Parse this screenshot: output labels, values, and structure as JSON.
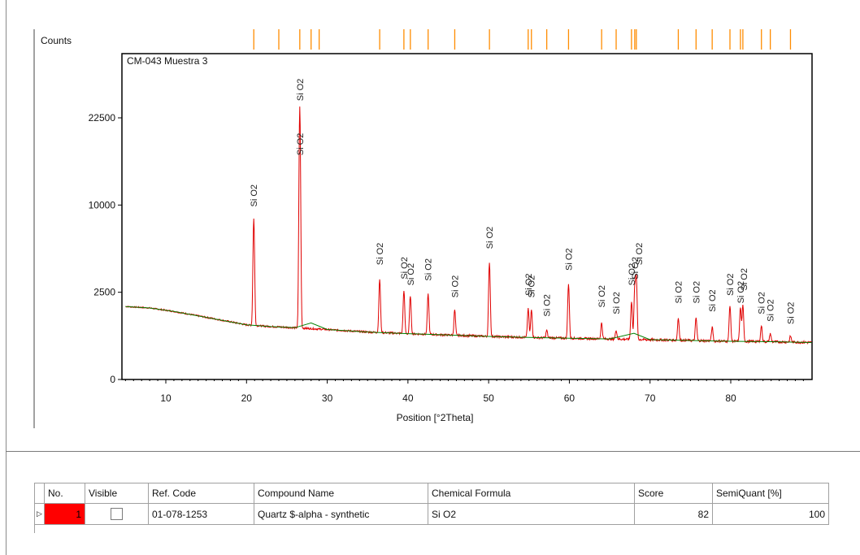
{
  "chart_data": {
    "type": "line",
    "title": "CM-043 Muestra 3",
    "ylabel": "Counts",
    "xlabel": "Position [°2Theta]",
    "xlim": [
      5,
      90
    ],
    "x_ticks": [
      10,
      20,
      30,
      40,
      50,
      60,
      70,
      80
    ],
    "y_ticks": [
      0,
      2500,
      10000,
      22500
    ],
    "y_scale": "sqrt",
    "grid": false,
    "series": [
      {
        "color": "#e00000",
        "background": [
          [
            5,
            1750
          ],
          [
            8,
            1680
          ],
          [
            11,
            1520
          ],
          [
            14,
            1330
          ],
          [
            17,
            1150
          ],
          [
            20,
            980
          ],
          [
            23,
            920
          ],
          [
            26,
            880
          ],
          [
            30,
            820
          ],
          [
            35,
            740
          ],
          [
            40,
            690
          ],
          [
            45,
            650
          ],
          [
            50,
            610
          ],
          [
            55,
            580
          ],
          [
            60,
            560
          ],
          [
            65,
            540
          ],
          [
            70,
            520
          ],
          [
            75,
            500
          ],
          [
            80,
            480
          ],
          [
            85,
            470
          ],
          [
            90,
            450
          ]
        ],
        "peaks": [
          [
            20.9,
            8500
          ],
          [
            26.6,
            24500
          ],
          [
            36.5,
            3300
          ],
          [
            39.5,
            2600
          ],
          [
            40.3,
            2300
          ],
          [
            42.5,
            2400
          ],
          [
            45.8,
            1600
          ],
          [
            50.1,
            4500
          ],
          [
            54.9,
            1650
          ],
          [
            55.3,
            1600
          ],
          [
            57.2,
            800
          ],
          [
            59.9,
            3000
          ],
          [
            64.0,
            1050
          ],
          [
            65.8,
            800
          ],
          [
            67.7,
            2000
          ],
          [
            68.1,
            2700
          ],
          [
            68.3,
            3400
          ],
          [
            73.5,
            1250
          ],
          [
            75.7,
            1250
          ],
          [
            77.7,
            900
          ],
          [
            79.9,
            1800
          ],
          [
            81.2,
            1700
          ],
          [
            81.5,
            1800
          ],
          [
            83.8,
            950
          ],
          [
            84.9,
            700
          ],
          [
            87.4,
            620
          ]
        ]
      },
      {
        "color": "#008000",
        "points": [
          [
            5,
            1750
          ],
          [
            8,
            1680
          ],
          [
            11,
            1520
          ],
          [
            14,
            1330
          ],
          [
            17,
            1150
          ],
          [
            20,
            980
          ],
          [
            23,
            920
          ],
          [
            26,
            880
          ],
          [
            28,
            1050
          ],
          [
            30,
            820
          ],
          [
            35,
            740
          ],
          [
            40,
            690
          ],
          [
            45,
            650
          ],
          [
            50,
            610
          ],
          [
            55,
            580
          ],
          [
            60,
            560
          ],
          [
            65,
            540
          ],
          [
            68,
            700
          ],
          [
            70,
            520
          ],
          [
            75,
            500
          ],
          [
            80,
            480
          ],
          [
            85,
            470
          ],
          [
            90,
            450
          ]
        ]
      }
    ],
    "peak_labels": [
      {
        "x": 20.9,
        "y": 9800,
        "text": "Si O2"
      },
      {
        "x": 26.6,
        "y": 25500,
        "text": "Si O2"
      },
      {
        "x": 26.6,
        "y": 16500,
        "text": "Si O2"
      },
      {
        "x": 36.5,
        "y": 4300,
        "text": "Si O2"
      },
      {
        "x": 39.5,
        "y": 3300,
        "text": "Si O2"
      },
      {
        "x": 40.3,
        "y": 2900,
        "text": "Si O2"
      },
      {
        "x": 42.5,
        "y": 3200,
        "text": "Si O2"
      },
      {
        "x": 45.8,
        "y": 2200,
        "text": "Si O2"
      },
      {
        "x": 50.1,
        "y": 5600,
        "text": "Si O2"
      },
      {
        "x": 54.9,
        "y": 2300,
        "text": "Si O2"
      },
      {
        "x": 55.3,
        "y": 2200,
        "text": "Si O2"
      },
      {
        "x": 57.2,
        "y": 1300,
        "text": "Si O2"
      },
      {
        "x": 59.9,
        "y": 3900,
        "text": "Si O2"
      },
      {
        "x": 64.0,
        "y": 1700,
        "text": "Si O2"
      },
      {
        "x": 65.8,
        "y": 1400,
        "text": "Si O2"
      },
      {
        "x": 67.7,
        "y": 2900,
        "text": "Si O2"
      },
      {
        "x": 68.1,
        "y": 3300,
        "text": "Si O2"
      },
      {
        "x": 68.6,
        "y": 4300,
        "text": "Si O2"
      },
      {
        "x": 73.5,
        "y": 1900,
        "text": "Si O2"
      },
      {
        "x": 75.7,
        "y": 1900,
        "text": "Si O2"
      },
      {
        "x": 77.7,
        "y": 1500,
        "text": "Si O2"
      },
      {
        "x": 79.9,
        "y": 2300,
        "text": "Si O2"
      },
      {
        "x": 81.2,
        "y": 1900,
        "text": "Si O2"
      },
      {
        "x": 81.6,
        "y": 2600,
        "text": "Si O2"
      },
      {
        "x": 83.8,
        "y": 1400,
        "text": "Si O2"
      },
      {
        "x": 84.9,
        "y": 1100,
        "text": "Si O2"
      },
      {
        "x": 87.4,
        "y": 1000,
        "text": "Si O2"
      }
    ],
    "reference_lines": {
      "color": "#ff8c00",
      "positions": [
        20.9,
        24.0,
        26.6,
        28.0,
        29.0,
        36.5,
        39.5,
        40.3,
        42.5,
        45.8,
        50.1,
        54.9,
        55.3,
        57.2,
        59.9,
        64.0,
        65.8,
        67.7,
        68.1,
        68.3,
        73.5,
        75.7,
        77.7,
        79.9,
        81.2,
        81.5,
        83.8,
        84.9,
        87.4
      ]
    }
  },
  "table": {
    "headers": [
      "No.",
      "Visible",
      "Ref. Code",
      "Compound Name",
      "Chemical Formula",
      "Score",
      "SemiQuant [%]"
    ],
    "rows": [
      {
        "no": "1",
        "visible": false,
        "ref_code": "01-078-1253",
        "compound_name": "Quartz $-alpha - synthetic",
        "formula": "Si O2",
        "score": "82",
        "semiquant": "100"
      }
    ],
    "row_indicator": "▷",
    "selected_color": "#ff0000"
  }
}
